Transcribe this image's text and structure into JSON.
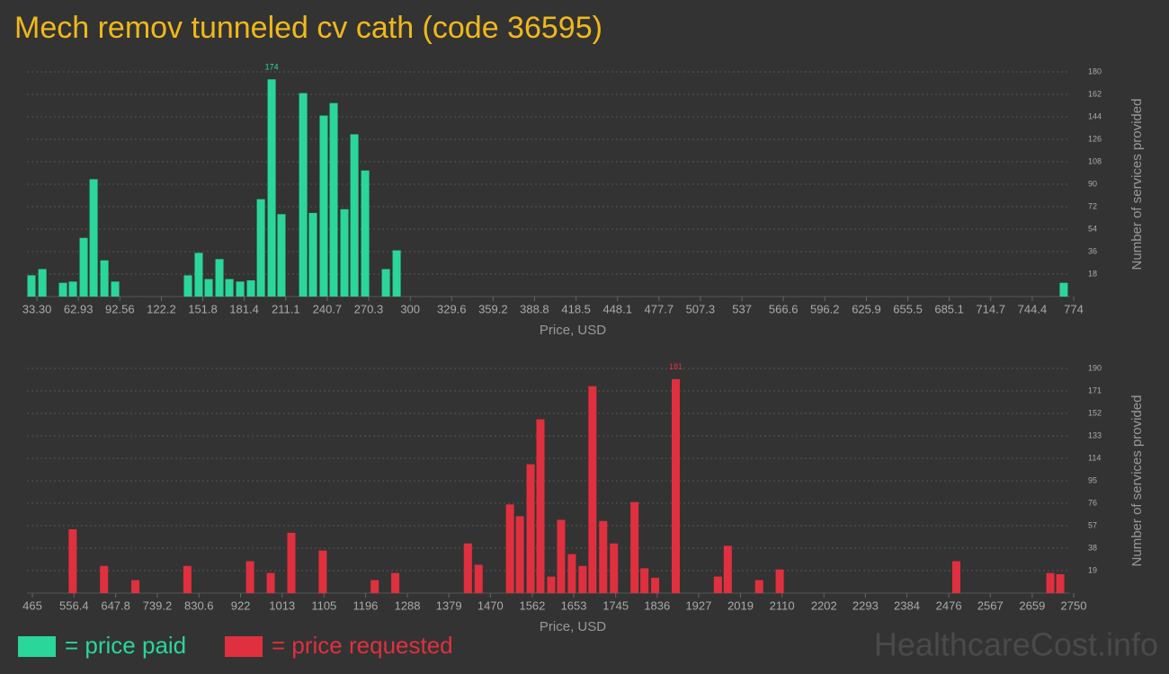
{
  "title": "Mech remov tunneled cv cath (code 36595)",
  "watermark": "HealthcareCost.info",
  "chart_data": [
    {
      "type": "bar",
      "xlabel": "Price, USD",
      "ylabel": "Number of services provided",
      "grid": true,
      "x": [
        29.4,
        37.2,
        51.9,
        59.0,
        66.7,
        73.8,
        81.5,
        89.2,
        141.2,
        148.9,
        156.0,
        163.7,
        170.8,
        178.5,
        186.2,
        193.3,
        201.0,
        208.0,
        223.5,
        230.5,
        238.2,
        245.3,
        253.0,
        260.1,
        267.8,
        282.6,
        290.3,
        766.9
      ],
      "series": [
        {
          "name": "= price paid",
          "color": "#2ad69a",
          "values": [
            17,
            22,
            11,
            12,
            47,
            94,
            29,
            12,
            17,
            35,
            14,
            30,
            14,
            12,
            13,
            78,
            174,
            66,
            163,
            67,
            145,
            155,
            70,
            130,
            101,
            22,
            37,
            11
          ]
        }
      ],
      "xlim": [
        26.2,
        774
      ],
      "xticks": [
        {
          "value": 33.3,
          "label": "33.30"
        },
        62.93,
        92.56,
        122.2,
        151.8,
        181.4,
        211.1,
        240.7,
        270.3,
        300,
        329.6,
        359.2,
        388.8,
        418.5,
        448.1,
        477.7,
        507.3,
        537,
        566.6,
        596.2,
        625.9,
        655.5,
        685.1,
        714.7,
        744.4,
        774
      ],
      "ylim": [
        0,
        180
      ],
      "yticks": [
        18,
        36,
        54,
        72,
        90,
        108,
        126,
        144,
        162,
        180
      ]
    },
    {
      "type": "bar",
      "xlabel": "Price, USD",
      "ylabel": "Number of services provided",
      "grid": true,
      "x": [
        553.5,
        622.3,
        691.1,
        805.2,
        942.8,
        988.1,
        1033.3,
        1102.1,
        1216.2,
        1261.4,
        1420.7,
        1444.3,
        1513.1,
        1534.7,
        1558.3,
        1579.9,
        1603.5,
        1625.2,
        1648.8,
        1672.4,
        1694.0,
        1717.6,
        1741.2,
        1786.4,
        1808.1,
        1831.6,
        1876.9,
        1969.3,
        1990.9,
        2059.8,
        2105.0,
        2492.4,
        2698.8,
        2720.5
      ],
      "series": [
        {
          "name": "= price requested",
          "color": "#e0303f",
          "values": [
            54,
            23,
            11,
            23,
            27,
            17,
            51,
            36,
            11,
            17,
            42,
            24,
            75,
            65,
            109,
            147,
            14,
            62,
            33,
            23,
            175,
            61,
            42,
            77,
            21,
            13,
            181,
            14,
            40,
            11,
            20,
            27,
            17,
            16
          ]
        }
      ],
      "xlim": [
        453.2,
        2750
      ],
      "xticks": [
        465,
        556.4,
        647.8,
        739.2,
        830.6,
        922,
        1013,
        1105,
        1196,
        1288,
        1379,
        1470,
        1562,
        1653,
        1745,
        1836,
        1927,
        2019,
        2110,
        2202,
        2293,
        2384,
        2476,
        2567,
        2659,
        2750
      ],
      "ylim": [
        0,
        190
      ],
      "yticks": [
        19,
        38,
        57,
        76,
        95,
        114,
        133,
        152,
        171,
        190
      ]
    }
  ]
}
